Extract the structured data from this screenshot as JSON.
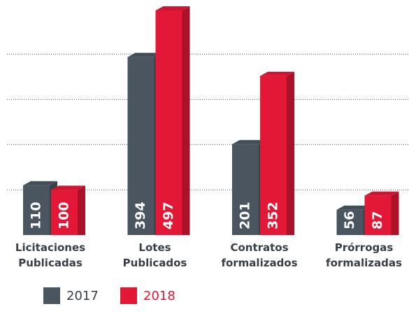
{
  "chart_data": {
    "type": "bar",
    "categories": [
      "Licitaciones Publicadas",
      "Lotes Publicados",
      "Contratos formalizados",
      "Prórrogas formalizadas"
    ],
    "series": [
      {
        "name": "2017",
        "color": "#4a5560",
        "values": [
          110,
          394,
          201,
          56
        ]
      },
      {
        "name": "2018",
        "color": "#e31837",
        "values": [
          100,
          497,
          352,
          87
        ]
      }
    ],
    "ylim": [
      0,
      500
    ],
    "yticks": [
      100,
      200,
      300,
      400
    ],
    "grid": true,
    "legend": "bottom"
  }
}
